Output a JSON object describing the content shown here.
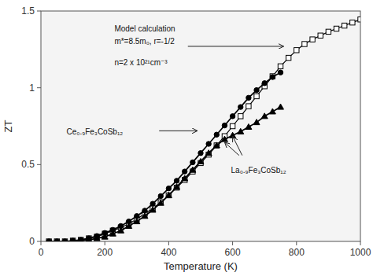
{
  "chart_data": {
    "type": "line",
    "x_label": "Temperature (K)",
    "y_label": "ZT",
    "xlim": [
      0,
      1000
    ],
    "ylim": [
      0,
      1.5
    ],
    "xticks": [
      0,
      200,
      400,
      600,
      800,
      1000
    ],
    "yticks": [
      0,
      0.5,
      1,
      1.5
    ],
    "grid": false,
    "series": [
      {
        "color": "#000000",
        "marker": "open-square",
        "line_style": "solid",
        "x": [
          25,
          50,
          75,
          100,
          125,
          150,
          175,
          200,
          225,
          250,
          275,
          300,
          325,
          350,
          375,
          400,
          425,
          450,
          475,
          500,
          525,
          550,
          575,
          600,
          625,
          650,
          675,
          700,
          725,
          750,
          775,
          800,
          825,
          850,
          875,
          900,
          925,
          950,
          975,
          1000
        ],
        "values": [
          0.0,
          0.0,
          0.0,
          0.005,
          0.01,
          0.02,
          0.03,
          0.05,
          0.07,
          0.09,
          0.115,
          0.145,
          0.18,
          0.215,
          0.255,
          0.3,
          0.35,
          0.4,
          0.455,
          0.51,
          0.565,
          0.625,
          0.685,
          0.75,
          0.815,
          0.88,
          0.945,
          1.01,
          1.075,
          1.14,
          1.195,
          1.245,
          1.285,
          1.315,
          1.34,
          1.365,
          1.385,
          1.405,
          1.425,
          1.445
        ]
      },
      {
        "color": "#000000",
        "marker": "circle",
        "line_style": "solid",
        "x": [
          25,
          50,
          75,
          100,
          125,
          150,
          175,
          200,
          225,
          250,
          275,
          300,
          325,
          350,
          375,
          400,
          425,
          450,
          475,
          500,
          525,
          550,
          575,
          600,
          625,
          650,
          675,
          700,
          725,
          750
        ],
        "values": [
          0.0,
          0.0,
          0.0,
          0.005,
          0.01,
          0.02,
          0.035,
          0.055,
          0.075,
          0.1,
          0.13,
          0.165,
          0.2,
          0.245,
          0.295,
          0.345,
          0.395,
          0.455,
          0.515,
          0.575,
          0.635,
          0.695,
          0.755,
          0.815,
          0.875,
          0.935,
          0.985,
          1.03,
          1.07,
          1.1
        ]
      },
      {
        "color": "#000000",
        "marker": "triangle",
        "line_style": "solid",
        "x": [
          100,
          125,
          150,
          175,
          200,
          225,
          250,
          275,
          300,
          325,
          350,
          375,
          400,
          425,
          450,
          475,
          500,
          525,
          550,
          575,
          600,
          625,
          650,
          675,
          700,
          725,
          750
        ],
        "values": [
          0.0,
          0.005,
          0.01,
          0.02,
          0.03,
          0.05,
          0.07,
          0.1,
          0.13,
          0.165,
          0.205,
          0.25,
          0.3,
          0.355,
          0.41,
          0.465,
          0.52,
          0.575,
          0.625,
          0.665,
          0.69,
          0.715,
          0.745,
          0.775,
          0.815,
          0.845,
          0.875
        ]
      }
    ],
    "annotations": [
      {
        "text": "Model calculation",
        "x": 230,
        "y": 1.41,
        "arrows": [
          [
            460,
            1.27,
            760,
            1.27
          ]
        ]
      },
      {
        "text": "m*=8.5m₀,  r=-1/2",
        "x": 230,
        "y": 1.33
      },
      {
        "text": "n=2 x 10²¹cm⁻³",
        "x": 230,
        "y": 1.19
      },
      {
        "text": "Ce₀.₉Fe₃CoSb₁₂",
        "x": 80,
        "y": 0.74,
        "arrows": [
          [
            370,
            0.72,
            490,
            0.72
          ]
        ]
      },
      {
        "text": "La₀.₉Fe₃CoSb₁₂",
        "x": 595,
        "y": 0.49,
        "arrows": [
          [
            620,
            0.56,
            575,
            0.645
          ],
          [
            630,
            0.56,
            600,
            0.685
          ]
        ]
      }
    ]
  }
}
